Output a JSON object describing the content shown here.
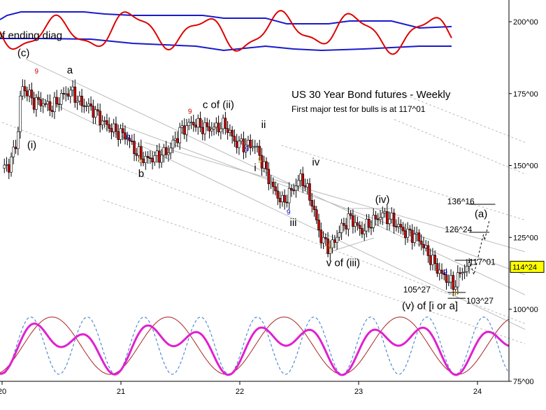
{
  "chart_data": {
    "type": "candlestick",
    "title": "US 30 Year Bond futures - Weekly",
    "subtitle": "First major test for bulls is at 117^01",
    "y_axis": {
      "ticks": [
        {
          "value": 75,
          "label": "75^00"
        },
        {
          "value": 100,
          "label": "100^00"
        },
        {
          "value": 125,
          "label": "125^00"
        },
        {
          "value": 150,
          "label": "150^00"
        },
        {
          "value": 175,
          "label": "175^00"
        },
        {
          "value": 200,
          "label": "200^00"
        }
      ],
      "range": [
        75,
        211
      ],
      "current_price_label": "114^24",
      "current_price": 114.75
    },
    "x_axis": {
      "ticks": [
        {
          "value": 2020,
          "label": "20"
        },
        {
          "value": 2021,
          "label": "21"
        },
        {
          "value": 2022,
          "label": "22"
        },
        {
          "value": 2023,
          "label": "23"
        },
        {
          "value": 2024,
          "label": "24"
        }
      ],
      "range": [
        2020.0,
        2024.47
      ]
    },
    "price_path": [
      [
        2020.0,
        149
      ],
      [
        2020.06,
        150
      ],
      [
        2020.1,
        155
      ],
      [
        2020.14,
        163
      ],
      [
        2020.16,
        178
      ],
      [
        2020.2,
        176
      ],
      [
        2020.27,
        172
      ],
      [
        2020.33,
        172
      ],
      [
        2020.42,
        170
      ],
      [
        2020.5,
        174
      ],
      [
        2020.58,
        176
      ],
      [
        2020.65,
        172
      ],
      [
        2020.75,
        170
      ],
      [
        2020.85,
        165
      ],
      [
        2020.95,
        162
      ],
      [
        2021.05,
        160
      ],
      [
        2021.12,
        155
      ],
      [
        2021.2,
        152
      ],
      [
        2021.3,
        153
      ],
      [
        2021.4,
        155
      ],
      [
        2021.5,
        162
      ],
      [
        2021.6,
        165
      ],
      [
        2021.7,
        163
      ],
      [
        2021.78,
        163
      ],
      [
        2021.88,
        164
      ],
      [
        2021.96,
        158
      ],
      [
        2022.05,
        157
      ],
      [
        2022.13,
        157
      ],
      [
        2022.2,
        150
      ],
      [
        2022.28,
        142
      ],
      [
        2022.36,
        137
      ],
      [
        2022.45,
        142
      ],
      [
        2022.52,
        146
      ],
      [
        2022.6,
        138
      ],
      [
        2022.68,
        125
      ],
      [
        2022.76,
        121
      ],
      [
        2022.85,
        128
      ],
      [
        2022.93,
        132
      ],
      [
        2023.02,
        127
      ],
      [
        2023.1,
        130
      ],
      [
        2023.2,
        133
      ],
      [
        2023.28,
        131
      ],
      [
        2023.38,
        127
      ],
      [
        2023.5,
        125
      ],
      [
        2023.6,
        118
      ],
      [
        2023.7,
        112
      ],
      [
        2023.76,
        110
      ],
      [
        2023.8,
        108
      ],
      [
        2023.86,
        113
      ],
      [
        2023.93,
        114.75
      ]
    ],
    "annotations": [
      {
        "text": "(c)",
        "x": 2020.18,
        "y": 188,
        "color": "#000000"
      },
      {
        "text": "(i)",
        "x": 2020.25,
        "y": 156,
        "color": "#000000"
      },
      {
        "text": "a",
        "x": 2020.57,
        "y": 182,
        "color": "#000000"
      },
      {
        "text": "b",
        "x": 2021.17,
        "y": 146,
        "color": "#000000"
      },
      {
        "text": "c of (ii)",
        "x": 2021.82,
        "y": 170,
        "color": "#000000"
      },
      {
        "text": "ii",
        "x": 2022.2,
        "y": 163,
        "color": "#000000"
      },
      {
        "text": "i",
        "x": 2022.13,
        "y": 148,
        "color": "#000000"
      },
      {
        "text": "iii",
        "x": 2022.45,
        "y": 129,
        "color": "#000000"
      },
      {
        "text": "iv",
        "x": 2022.64,
        "y": 150,
        "color": "#000000"
      },
      {
        "text": "v of (iii)",
        "x": 2022.87,
        "y": 115,
        "color": "#000000"
      },
      {
        "text": "(iv)",
        "x": 2023.2,
        "y": 137,
        "color": "#000000"
      },
      {
        "text": "(v) of [i or a]",
        "x": 2023.6,
        "y": 100,
        "color": "#000000"
      },
      {
        "text": "(a)",
        "x": 2024.03,
        "y": 132,
        "color": "#000000"
      },
      {
        "text": "136^16",
        "x": 2023.86,
        "y": 136.5,
        "color": "#000000"
      },
      {
        "text": "126^24",
        "x": 2023.84,
        "y": 126.75,
        "color": "#000000"
      },
      {
        "text": "117^01",
        "x": 2024.04,
        "y": 115.4,
        "color": "#000000"
      },
      {
        "text": "105^27",
        "x": 2023.49,
        "y": 105.9,
        "color": "#000000"
      },
      {
        "text": "103^27",
        "x": 2024.02,
        "y": 102,
        "color": "#000000"
      },
      {
        "text": "[v] of ending diag",
        "x": 2020.17,
        "y": 194,
        "color": "#000000"
      }
    ],
    "td_counts": [
      {
        "text": "9",
        "x": 2020.29,
        "y": 182,
        "color": "#cc0000"
      },
      {
        "text": "9",
        "x": 2021.06,
        "y": 159,
        "color": "#0000cc"
      },
      {
        "text": "5",
        "x": 2021.16,
        "y": 151,
        "color": "#b8860b"
      },
      {
        "text": "9",
        "x": 2021.58,
        "y": 168,
        "color": "#cc0000"
      },
      {
        "text": "9",
        "x": 2022.06,
        "y": 155,
        "color": "#0000cc"
      },
      {
        "text": "5",
        "x": 2022.17,
        "y": 151,
        "color": "#b8860b"
      },
      {
        "text": "9",
        "x": 2022.41,
        "y": 133,
        "color": "#0000cc"
      },
      {
        "text": "5",
        "x": 2022.76,
        "y": 121,
        "color": "#b8860b"
      },
      {
        "text": "9",
        "x": 2023.73,
        "y": 112,
        "color": "#0000cc"
      },
      {
        "text": "4*",
        "x": 2023.82,
        "y": 104.8,
        "color": "#b8860b"
      }
    ],
    "channel_lines": [
      {
        "points": [
          [
            2020.2,
            187
          ],
          [
            2024.4,
            105
          ]
        ],
        "style": "solid",
        "color": "#bbbbbb"
      },
      {
        "points": [
          [
            2020.2,
            176
          ],
          [
            2024.4,
            93
          ]
        ],
        "style": "solid",
        "color": "#bbbbbb"
      },
      {
        "points": [
          [
            2021.0,
            164
          ],
          [
            2024.4,
            112
          ]
        ],
        "style": "solid",
        "color": "#bbbbbb"
      },
      {
        "points": [
          [
            2021.2,
            158
          ],
          [
            2024.4,
            120
          ]
        ],
        "style": "solid",
        "color": "#bbbbbb"
      },
      {
        "points": [
          [
            2020.0,
            165
          ],
          [
            2024.4,
            95
          ]
        ],
        "style": "dashed",
        "color": "#bbbbbb"
      },
      {
        "points": [
          [
            2020.85,
            138
          ],
          [
            2024.4,
            88
          ]
        ],
        "style": "dashed",
        "color": "#bbbbbb"
      },
      {
        "points": [
          [
            2022.35,
            157
          ],
          [
            2024.4,
            131
          ]
        ],
        "style": "dashed",
        "color": "#bbbbbb"
      },
      {
        "points": [
          [
            2023.3,
            166
          ],
          [
            2024.4,
            147
          ]
        ],
        "style": "dashed",
        "color": "#bbbbbb"
      },
      {
        "points": [
          [
            2023.3,
            176
          ],
          [
            2024.4,
            158
          ]
        ],
        "style": "dashed",
        "color": "#bbbbbb"
      }
    ],
    "levels": [
      {
        "value": 136.5,
        "label": "136^16",
        "x_from": 2023.93,
        "x_to": 2024.15
      },
      {
        "value": 126.75,
        "label": "126^24",
        "x_from": 2023.93,
        "x_to": 2024.1
      },
      {
        "value": 117.03,
        "label": "117^01",
        "x_from": 2023.81,
        "x_to": 2023.98
      },
      {
        "value": 105.84,
        "label": "105^27",
        "x_from": 2023.75,
        "x_to": 2023.9
      },
      {
        "value": 103.84,
        "label": "103^27",
        "x_from": 2023.75,
        "x_to": 2023.9
      }
    ],
    "colors": {
      "up_candle": "#ffffff",
      "down_candle": "#cc0000",
      "oscillator_red": "#dd0000",
      "oscillator_blue": "#1a1acc",
      "cycle_magenta": "#e020d0",
      "cycle_red": "#aa2222",
      "cycle_blue": "#3377cc",
      "price_tag": "#ffff00"
    }
  }
}
